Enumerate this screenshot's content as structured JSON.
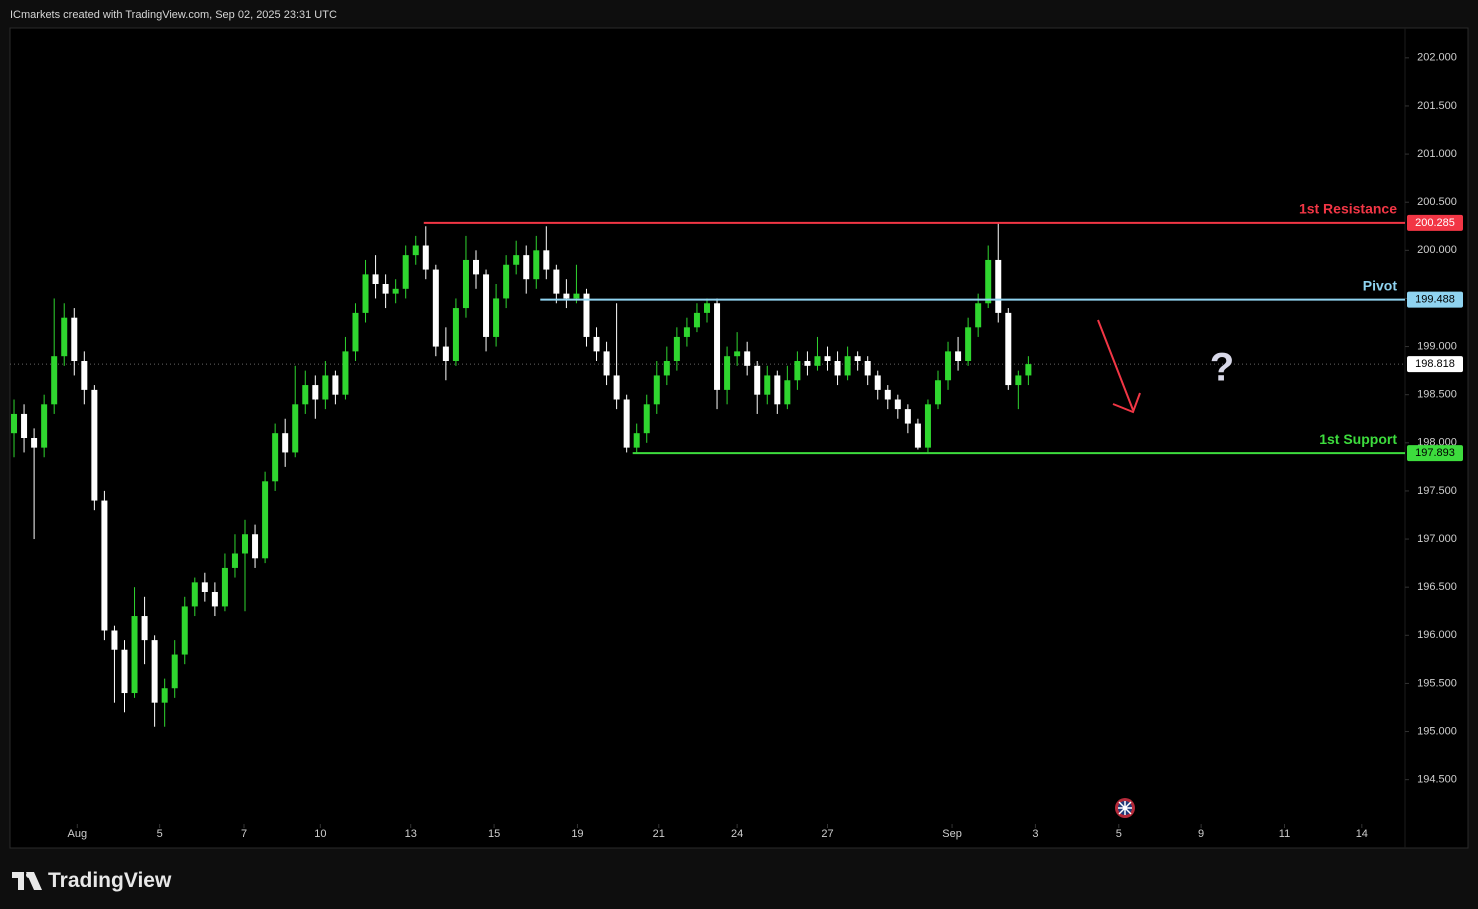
{
  "header": "ICmarkets created with TradingView.com, Sep 02, 2025 23:31 UTC",
  "logo": "TradingView",
  "chart_data": {
    "type": "candlestick",
    "up_color": "#2fd62f",
    "down_color": "#ffffff",
    "annotation": "?",
    "open": [
      198.1,
      198.3,
      198.05,
      197.95,
      198.4,
      198.9,
      199.3,
      198.85,
      198.55,
      197.4,
      196.05,
      195.85,
      195.4,
      196.2,
      195.95,
      195.3,
      195.45,
      195.8,
      196.3,
      196.55,
      196.45,
      196.3,
      196.7,
      196.85,
      197.05,
      196.8,
      197.6,
      198.1,
      197.9,
      198.4,
      198.6,
      198.45,
      198.7,
      198.5,
      198.95,
      199.35,
      199.75,
      199.65,
      199.55,
      199.6,
      199.95,
      200.05,
      199.8,
      199.0,
      198.85,
      199.4,
      199.9,
      199.75,
      199.1,
      199.5,
      199.85,
      199.95,
      199.7,
      200.0,
      199.8,
      199.55,
      199.5,
      199.55,
      199.1,
      198.95,
      198.7,
      198.45,
      197.95,
      198.1,
      198.4,
      198.7,
      198.85,
      199.1,
      199.2,
      199.35,
      199.45,
      198.55,
      198.9,
      198.95,
      198.8,
      198.5,
      198.7,
      198.4,
      198.65,
      198.85,
      198.8,
      198.9,
      198.85,
      198.7,
      198.9,
      198.85,
      198.7,
      198.55,
      198.45,
      198.35,
      198.2,
      197.95,
      198.4,
      198.65,
      198.95,
      198.85,
      199.2,
      199.45,
      199.9,
      199.35,
      198.6,
      198.7
    ],
    "high": [
      198.45,
      198.4,
      198.15,
      198.5,
      199.5,
      199.45,
      199.4,
      198.95,
      198.6,
      197.5,
      196.1,
      195.95,
      196.5,
      196.4,
      196.0,
      195.55,
      195.95,
      196.4,
      196.6,
      196.65,
      196.55,
      196.85,
      197.05,
      197.2,
      197.15,
      197.7,
      198.2,
      198.25,
      198.8,
      198.75,
      198.7,
      198.85,
      198.75,
      199.1,
      199.45,
      199.9,
      199.95,
      199.75,
      199.7,
      200.05,
      200.15,
      200.25,
      199.85,
      199.2,
      199.5,
      200.15,
      200.0,
      199.8,
      199.65,
      199.95,
      200.1,
      200.05,
      200.15,
      200.25,
      199.85,
      199.7,
      199.85,
      199.6,
      199.2,
      199.05,
      199.45,
      198.5,
      198.2,
      198.5,
      198.85,
      199.0,
      199.2,
      199.3,
      199.45,
      199.5,
      199.5,
      199.0,
      199.15,
      199.05,
      198.85,
      198.8,
      198.75,
      198.8,
      198.95,
      198.95,
      199.1,
      199.0,
      198.95,
      199.0,
      198.95,
      198.9,
      198.75,
      198.6,
      198.5,
      198.4,
      198.25,
      198.45,
      198.75,
      199.05,
      199.1,
      199.3,
      199.55,
      200.05,
      200.28,
      199.4,
      198.75,
      198.9
    ],
    "low": [
      197.85,
      197.9,
      197.0,
      197.85,
      198.3,
      198.8,
      198.7,
      198.4,
      197.3,
      195.95,
      195.3,
      195.2,
      195.35,
      195.7,
      195.05,
      195.05,
      195.35,
      195.7,
      196.2,
      196.35,
      196.2,
      196.25,
      196.6,
      196.25,
      196.7,
      196.75,
      197.5,
      197.75,
      197.85,
      198.3,
      198.25,
      198.35,
      198.4,
      198.45,
      198.85,
      199.25,
      199.5,
      199.4,
      199.45,
      199.5,
      199.85,
      199.7,
      198.9,
      198.65,
      198.8,
      199.3,
      199.6,
      198.95,
      199.0,
      199.4,
      199.75,
      199.55,
      199.6,
      199.7,
      199.45,
      199.4,
      199.45,
      199.0,
      198.85,
      198.6,
      198.35,
      197.9,
      197.9,
      198.0,
      198.3,
      198.6,
      198.75,
      199.0,
      199.15,
      199.25,
      198.35,
      198.4,
      198.8,
      198.7,
      198.3,
      198.4,
      198.3,
      198.35,
      198.55,
      198.7,
      198.75,
      198.75,
      198.6,
      198.65,
      198.75,
      198.6,
      198.45,
      198.35,
      198.25,
      198.1,
      197.93,
      197.9,
      198.35,
      198.55,
      198.75,
      198.8,
      199.1,
      199.4,
      199.25,
      198.55,
      198.35,
      198.6
    ],
    "close": [
      198.3,
      198.05,
      197.95,
      198.4,
      198.9,
      199.3,
      198.85,
      198.55,
      197.4,
      196.05,
      195.85,
      195.4,
      196.2,
      195.95,
      195.3,
      195.45,
      195.8,
      196.3,
      196.55,
      196.45,
      196.3,
      196.7,
      196.85,
      197.05,
      196.8,
      197.6,
      198.1,
      197.9,
      198.4,
      198.6,
      198.45,
      198.7,
      198.5,
      198.95,
      199.35,
      199.75,
      199.65,
      199.55,
      199.6,
      199.95,
      200.05,
      199.8,
      199.0,
      198.85,
      199.4,
      199.9,
      199.75,
      199.1,
      199.5,
      199.85,
      199.95,
      199.7,
      200.0,
      199.8,
      199.55,
      199.5,
      199.55,
      199.1,
      198.95,
      198.7,
      198.45,
      197.95,
      198.1,
      198.4,
      198.7,
      198.85,
      199.1,
      199.2,
      199.35,
      199.45,
      198.55,
      198.9,
      198.95,
      198.8,
      198.5,
      198.7,
      198.4,
      198.65,
      198.85,
      198.8,
      198.9,
      198.85,
      198.7,
      198.9,
      198.85,
      198.7,
      198.55,
      198.45,
      198.35,
      198.2,
      197.95,
      198.4,
      198.65,
      198.95,
      198.85,
      199.2,
      199.45,
      199.9,
      199.35,
      198.6,
      198.7,
      198.818
    ],
    "last_price": {
      "value": 198.818,
      "color": "#ffffff"
    },
    "levels": [
      {
        "name": "1st Resistance",
        "value": 200.285,
        "color": "#f23645",
        "from": 40.8
      },
      {
        "name": "Pivot",
        "value": 199.488,
        "color": "#8fd3f0",
        "from": 52.4
      },
      {
        "name": "1st Support",
        "value": 197.893,
        "color": "#3ddc3d",
        "from": 61.6
      }
    ],
    "xlim": [
      -0.4,
      138.5
    ],
    "xticks": [
      {
        "value": 6.3,
        "label": "Aug"
      },
      14.5,
      22.9,
      30.5,
      39.5,
      47.8,
      56.1,
      64.2,
      72,
      81,
      {
        "value": 93.4,
        "label": "Sep"
      },
      101.7,
      110,
      118.2,
      126.5,
      134.2
    ],
    "xtick_labels": [
      "Aug",
      "5",
      "7",
      "10",
      "13",
      "15",
      "19",
      "21",
      "24",
      "27",
      "Sep",
      "3",
      "5",
      "9",
      "11",
      "14"
    ],
    "ylim": [
      193.79,
      202.31
    ],
    "yticks": [
      {
        "value": 194.5,
        "label": "194.500"
      },
      {
        "value": 195,
        "label": "195.000"
      },
      {
        "value": 195.5,
        "label": "195.500"
      },
      {
        "value": 196,
        "label": "196.000"
      },
      {
        "value": 196.5,
        "label": "196.500"
      },
      {
        "value": 197,
        "label": "197.000"
      },
      {
        "value": 197.5,
        "label": "197.500"
      },
      {
        "value": 198,
        "label": "198.000"
      },
      {
        "value": 198.5,
        "label": "198.500"
      },
      {
        "value": 199,
        "label": "199.000"
      },
      {
        "value": 199.5,
        "label": "199.500"
      },
      {
        "value": 200,
        "label": "200.000"
      },
      {
        "value": 200.5,
        "label": "200.500"
      },
      {
        "value": 201,
        "label": "201.000"
      },
      {
        "value": 201.5,
        "label": "201.500"
      },
      {
        "value": 202,
        "label": "202.000"
      }
    ]
  }
}
